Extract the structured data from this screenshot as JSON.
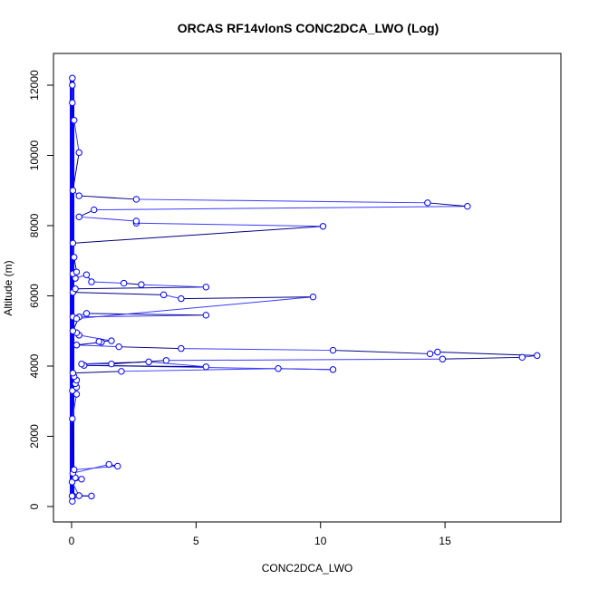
{
  "chart_data": {
    "type": "line",
    "title": "ORCAS RF14vlonS CONC2DCA_LWO (Log)",
    "xlabel": "CONC2DCA_LWO",
    "ylabel": "Altitude (m)",
    "xlim": [
      0,
      19
    ],
    "ylim": [
      0,
      12500
    ],
    "xticks": [
      0,
      5,
      10,
      15
    ],
    "yticks": [
      0,
      2000,
      4000,
      6000,
      8000,
      10000,
      12000
    ],
    "grid": false,
    "legend": "none",
    "colors": {
      "line": "#3a3aff",
      "line_dark": "#000080",
      "points": "#0000ff",
      "axes": "#000000"
    },
    "series": [
      {
        "x": [
          0.03,
          0.06,
          0.02,
          0.8,
          0.3,
          0.02,
          0.4,
          0.15,
          0.05,
          1.5,
          1.85,
          0.1,
          0.03,
          0.2,
          0.03,
          0.2,
          0.15,
          0.2,
          0.1,
          0.05,
          2.0,
          8.3,
          10.5,
          0.5,
          5.4,
          3.1,
          0.4,
          1.6,
          3.8,
          14.9,
          18.1,
          18.7,
          14.7,
          14.4,
          10.5,
          4.4,
          1.9,
          0.2,
          1.2,
          1.1,
          1.6,
          0.3,
          0.2,
          0.05,
          0.3,
          5.4,
          0.6,
          0.05,
          0.2,
          9.7,
          4.4,
          3.7,
          0.05,
          0.15,
          5.4,
          2.8,
          2.1,
          0.8,
          0.6,
          0.15,
          0.05,
          0.2,
          0.1,
          0.05,
          10.1,
          2.6,
          2.6,
          0.3,
          0.9,
          15.9,
          14.3,
          2.6,
          0.3,
          0.05,
          0.3,
          0.1,
          0.03,
          0.03,
          0.03
        ],
        "y": [
          150,
          300,
          300,
          300,
          310,
          700,
          780,
          820,
          950,
          1200,
          1150,
          1050,
          2500,
          3200,
          3300,
          3400,
          3500,
          3600,
          3700,
          3800,
          3850,
          3930,
          3900,
          4020,
          3980,
          4120,
          4060,
          4060,
          4160,
          4200,
          4250,
          4300,
          4400,
          4350,
          4450,
          4500,
          4550,
          4600,
          4680,
          4700,
          4720,
          4880,
          4950,
          5000,
          5400,
          5450,
          5500,
          5400,
          5350,
          5970,
          5920,
          6030,
          6100,
          6200,
          6250,
          6320,
          6360,
          6400,
          6600,
          6500,
          6630,
          6680,
          7100,
          7500,
          7980,
          8070,
          8130,
          8250,
          8450,
          8550,
          8650,
          8750,
          8850,
          9000,
          10080,
          11000,
          11500,
          12000,
          12200
        ]
      }
    ]
  }
}
